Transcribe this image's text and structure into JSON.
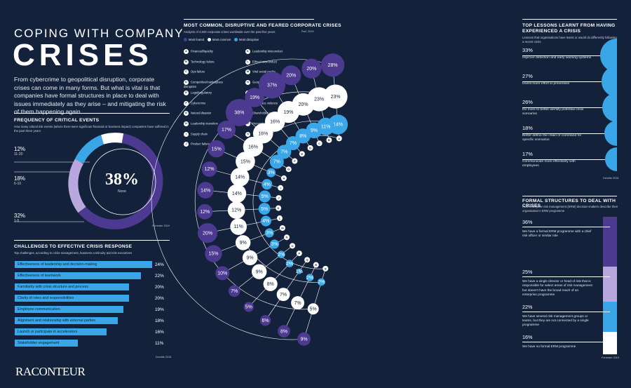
{
  "header": {
    "title_small": "COPING WITH COMPANY",
    "title_big": "CRISES",
    "intro": "From cybercrime to geopolitical disruption, corporate crises can come in many forms. But what is vital is that companies have formal structures in place to deal with issues immediately as they arise – and mitigating the risk of them happening again"
  },
  "critical": {
    "heading": "FREQUENCY OF CRITICAL EVENTS",
    "sub": "How many critical risk events (where there were significant financial or business impact) companies have suffered in the past three years",
    "center_value": "38%",
    "center_label": "None",
    "source": "Forrester 2019",
    "items": [
      {
        "pct": "12%",
        "label": "11-20"
      },
      {
        "pct": "18%",
        "label": "6-10"
      },
      {
        "pct": "32%",
        "label": "1-5"
      }
    ]
  },
  "challenges": {
    "heading": "CHALLENGES TO EFFECTIVE CRISIS RESPONSE",
    "sub": "Top challenges, according to crisis management, business continuity and risk executives",
    "source": "Deloitte 2018",
    "rows": [
      {
        "label": "Effectiveness of leadership and decision-making",
        "value": "24%"
      },
      {
        "label": "Effectiveness of teamwork",
        "value": "22%"
      },
      {
        "label": "Familiarity with crisis structure and process",
        "value": "20%"
      },
      {
        "label": "Clarity of roles and responsibilities",
        "value": "20%"
      },
      {
        "label": "Employee communication",
        "value": "19%"
      },
      {
        "label": "Alignment and relationship with external parties",
        "value": "18%"
      },
      {
        "label": "Launch or participate in accelerators",
        "value": "16%"
      },
      {
        "label": "Stakeholder engagement",
        "value": "11%"
      }
    ]
  },
  "middle": {
    "heading": "MOST COMMON, DISRUPTIVE AND FEARED CORPORATE CRISES",
    "sub": "Analysis of 4,500 corporate crises worldwide over the past five years",
    "source": "PwC 2019",
    "legend": [
      {
        "label": "Most feared",
        "color": "#4b3a8f"
      },
      {
        "label": "Most common",
        "color": "#ffffff"
      },
      {
        "label": "Most disruptive",
        "color": "#3aa6e8"
      }
    ],
    "categories_left": [
      {
        "key": "A",
        "label": "Financial/liquidity"
      },
      {
        "key": "B",
        "label": "Technology failure"
      },
      {
        "key": "C",
        "label": "Ops failure"
      },
      {
        "key": "D",
        "label": "Competitive/marketplace disruption"
      },
      {
        "key": "E",
        "label": "Legal/regulatory"
      },
      {
        "key": "F",
        "label": "Cybercrime"
      },
      {
        "key": "G",
        "label": "Natural disaster"
      },
      {
        "key": "H",
        "label": "Leadership transition"
      },
      {
        "key": "I",
        "label": "Supply chain"
      },
      {
        "key": "J",
        "label": "Product failure"
      }
    ],
    "categories_right": [
      {
        "key": "K",
        "label": "Leadership misconduct"
      },
      {
        "key": "L",
        "label": "Ethical misconduct"
      },
      {
        "key": "M",
        "label": "Viral social media"
      },
      {
        "key": "N",
        "label": "Geopolitical disruption"
      },
      {
        "key": "O",
        "label": "Product integrity"
      },
      {
        "key": "P",
        "label": "Workplace violence"
      },
      {
        "key": "Q",
        "label": "Shareholder activism"
      },
      {
        "key": "R",
        "label": "Humanitarian"
      },
      {
        "key": "S",
        "label": "Terrorism"
      }
    ]
  },
  "chart_data": {
    "type": "scatter",
    "categories": [
      "A",
      "B",
      "C",
      "D",
      "E",
      "F",
      "G",
      "H",
      "I",
      "J",
      "K",
      "L",
      "M",
      "N",
      "O",
      "P",
      "Q",
      "R",
      "S"
    ],
    "series": [
      {
        "name": "Most feared",
        "values": [
          28,
          20,
          20,
          37,
          19,
          38,
          17,
          15,
          12,
          14,
          12,
          20,
          15,
          10,
          7,
          5,
          6,
          8,
          9
        ]
      },
      {
        "name": "Most common",
        "values": [
          23,
          23,
          20,
          19,
          16,
          16,
          16,
          15,
          14,
          14,
          12,
          11,
          9,
          9,
          9,
          8,
          7,
          7,
          5
        ]
      },
      {
        "name": "Most disruptive",
        "values": [
          14,
          11,
          9,
          8,
          7,
          7,
          7,
          3,
          4,
          5,
          5,
          4,
          3,
          3,
          2,
          2,
          1,
          2,
          2
        ]
      }
    ]
  },
  "lessons": {
    "heading": "TOP LESSONS LEARNT FROM HAVING EXPERIENCED A CRISIS",
    "sub": "Lessons that organisations have learnt or would do differently following a recent crisis",
    "source": "Deloitte 2018",
    "items": [
      {
        "pct": "33%",
        "value": 33,
        "text": "Improve detection and early warning systems"
      },
      {
        "pct": "27%",
        "value": 27,
        "text": "Invest more effort in prevention"
      },
      {
        "pct": "26%",
        "value": 26,
        "text": "Do more to better identify potential crisis scenarios"
      },
      {
        "pct": "18%",
        "value": 18,
        "text": "Better define the chain of command for specific scenarios"
      },
      {
        "pct": "17%",
        "value": 17,
        "text": "Communicate more effectively with employees"
      }
    ]
  },
  "formal": {
    "heading": "FORMAL STRUCTURES TO DEAL WITH CRISES",
    "sub": "How enterprise risk management (ERM) decision-makers describe their organisation's ERM programme",
    "source": "Forrester 2019",
    "items": [
      {
        "pct": "36%",
        "value": 36,
        "text": "We have a formal ERM programme with a chief risk officer or similar role",
        "color": "#4b3a8f"
      },
      {
        "pct": "25%",
        "value": 25,
        "text": "We have a single director or head of risk that is responsible for select areas of risk management but doesn't have the broad reach of an enterprise programme",
        "color": "#b9a8de"
      },
      {
        "pct": "22%",
        "value": 22,
        "text": "We have several risk management groups or teams, but they are not connected by a single programme",
        "color": "#3aa6e8"
      },
      {
        "pct": "16%",
        "value": 16,
        "text": "We have no formal ERM programme",
        "color": "#ffffff"
      }
    ]
  },
  "brand": {
    "logo": "RACONTEUR"
  }
}
